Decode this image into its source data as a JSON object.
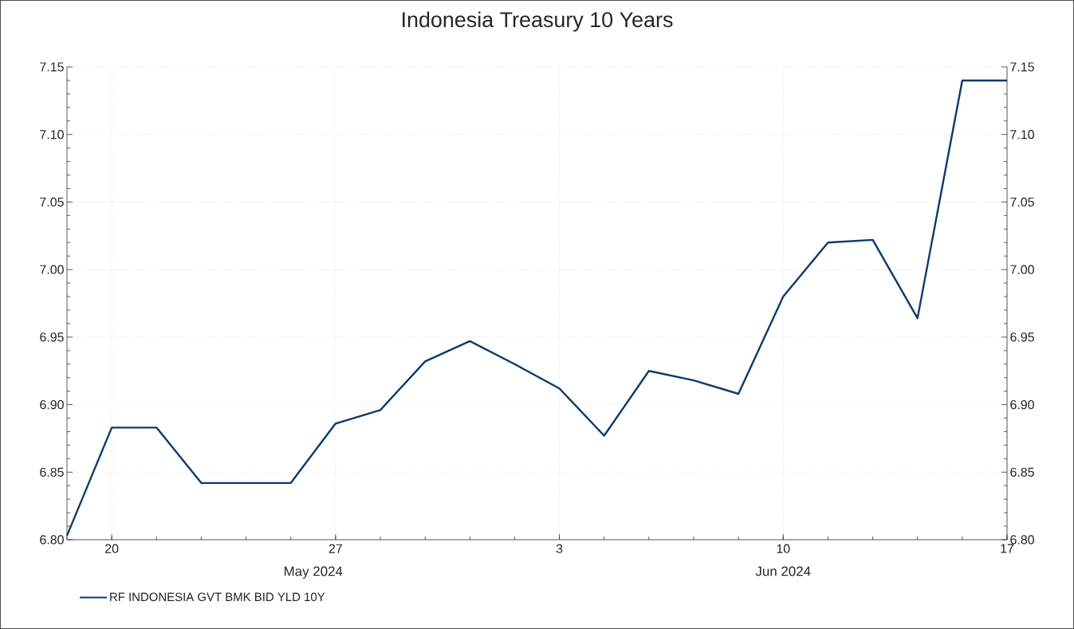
{
  "chart_data": {
    "type": "line",
    "title": "Indonesia Treasury 10 Years",
    "categories": [
      null,
      "20",
      null,
      null,
      null,
      null,
      "27",
      null,
      null,
      null,
      null,
      "3",
      null,
      null,
      null,
      null,
      "10",
      null,
      null,
      null,
      null,
      "17"
    ],
    "series": [
      {
        "name": "RF INDONESIA GVT BMK BID YLD 10Y",
        "color": "#0b3a6e",
        "values": [
          6.803,
          6.883,
          6.883,
          6.842,
          6.842,
          6.842,
          6.886,
          6.896,
          6.932,
          6.947,
          6.93,
          6.912,
          6.877,
          6.925,
          6.918,
          6.908,
          6.98,
          7.02,
          7.022,
          6.964,
          7.14,
          7.14
        ]
      }
    ],
    "ylim": [
      6.8,
      7.15
    ],
    "yticks": [
      {
        "value": 6.8,
        "label": "6.80"
      },
      {
        "value": 6.85,
        "label": "6.85"
      },
      {
        "value": 6.9,
        "label": "6.90"
      },
      {
        "value": 6.95,
        "label": "6.95"
      },
      {
        "value": 7.0,
        "label": "7.00"
      },
      {
        "value": 7.05,
        "label": "7.05"
      },
      {
        "value": 7.1,
        "label": "7.10"
      },
      {
        "value": 7.15,
        "label": "7.15"
      }
    ],
    "y2lim": [
      6.8,
      7.15
    ],
    "y2ticks": [
      {
        "value": 6.8,
        "label": "6.80"
      },
      {
        "value": 6.85,
        "label": "6.85"
      },
      {
        "value": 6.9,
        "label": "6.90"
      },
      {
        "value": 6.95,
        "label": "6.95"
      },
      {
        "value": 7.0,
        "label": "7.00"
      },
      {
        "value": 7.05,
        "label": "7.05"
      },
      {
        "value": 7.1,
        "label": "7.10"
      },
      {
        "value": 7.15,
        "label": "7.15"
      }
    ],
    "annotations": [
      "May 2024",
      "Jun 2024"
    ],
    "grid": true,
    "legend": "bottom left",
    "marker": "none",
    "line_style": "solid"
  }
}
